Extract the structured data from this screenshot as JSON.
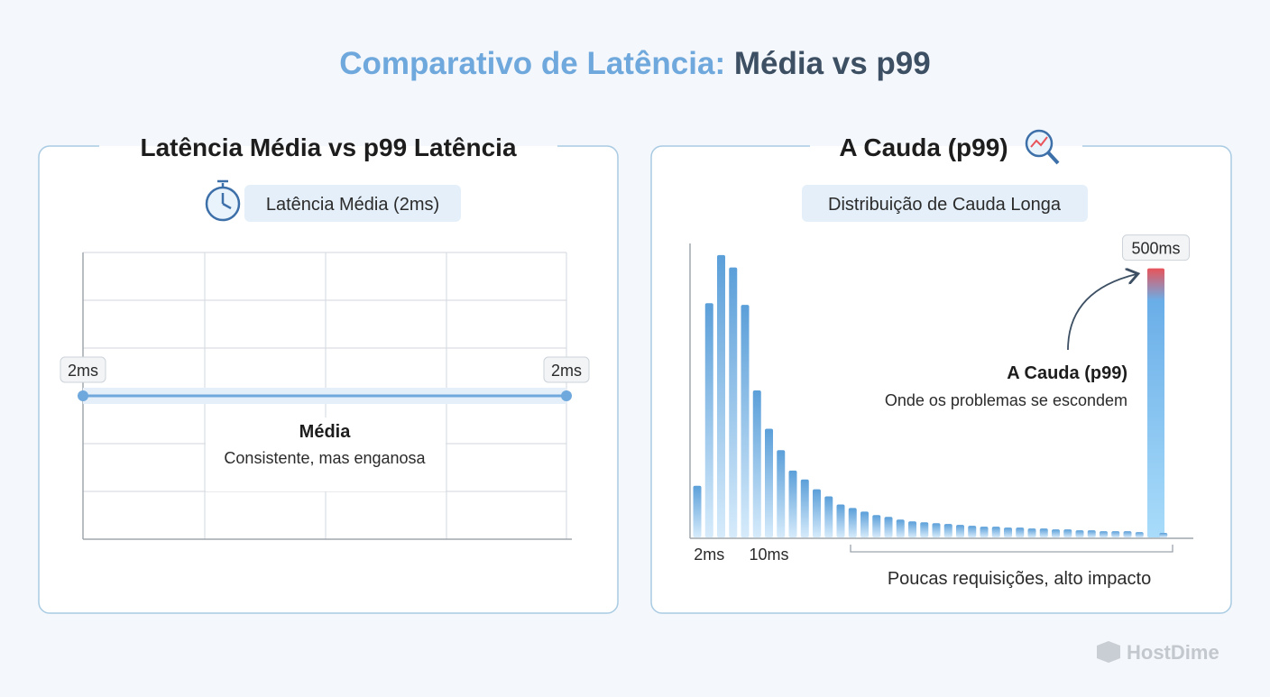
{
  "title": {
    "lead": "Comparativo de Latência:",
    "tail": "Média vs p99"
  },
  "chart_data": [
    {
      "type": "line",
      "title": "Latência Média vs p99 Latência",
      "badge": "Latência Média (2ms)",
      "values": [
        2,
        2
      ],
      "value_labels": [
        "2ms",
        "2ms"
      ],
      "color": "#6fa8dc",
      "annotation": {
        "title": "Média",
        "text": "Consistente, mas enganosa"
      }
    },
    {
      "type": "bar",
      "title": "A Cauda (p99)",
      "badge": "Distribuição de Cauda Longa",
      "categories": [
        null,
        "2ms",
        null,
        null,
        null,
        null,
        "10ms",
        null,
        null,
        null,
        null,
        null,
        null,
        null,
        null,
        null,
        null,
        null,
        null,
        null,
        null,
        null,
        null,
        null,
        null,
        null,
        null,
        null,
        null,
        null,
        null,
        null,
        null,
        null,
        null,
        null,
        null,
        null,
        null,
        null
      ],
      "values": [
        58,
        263,
        317,
        303,
        261,
        165,
        122,
        98,
        75,
        65,
        54,
        46,
        37,
        33,
        29,
        25,
        23,
        20,
        18,
        17,
        16,
        15,
        14,
        13,
        12,
        12,
        11,
        11,
        10,
        10,
        9,
        9,
        8,
        8,
        7,
        7,
        7,
        6,
        302,
        5
      ],
      "ylim": [
        0,
        330
      ],
      "color": "#6fa8dc",
      "highlight_color": "#e8545a",
      "tail_label": "500ms",
      "annotation": {
        "title": "A Cauda (p99)",
        "text": "Onde os problemas se escondem"
      },
      "bracket_label": "Poucas requisições, alto impacto"
    }
  ],
  "logo": "HostDime"
}
